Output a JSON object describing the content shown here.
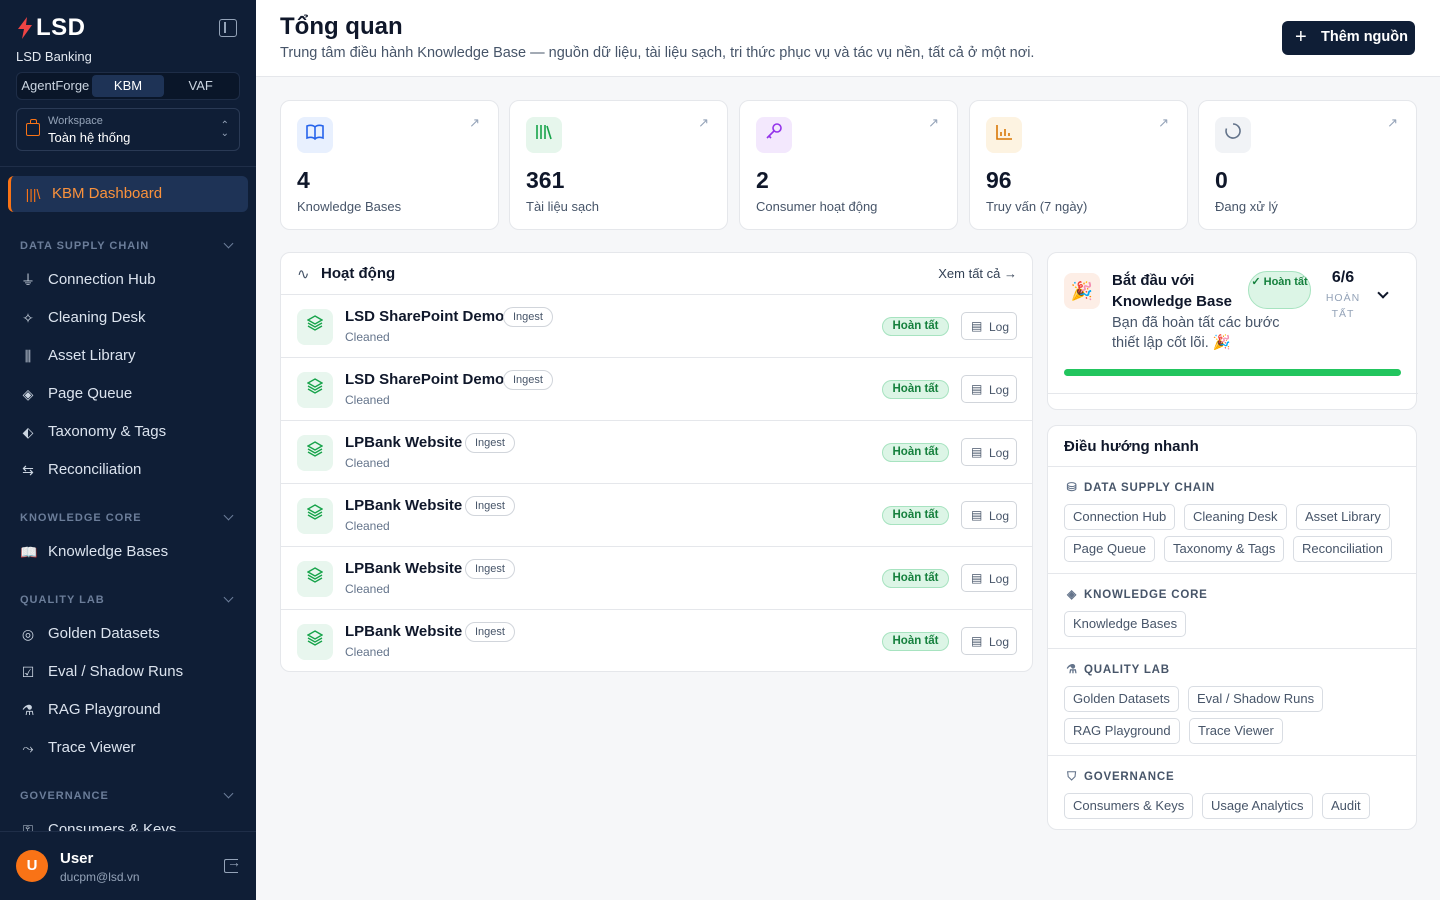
{
  "brand": {
    "logo": "LSD",
    "org": "LSD Banking"
  },
  "segments": [
    {
      "label": "AgentForge"
    },
    {
      "label": "KBM"
    },
    {
      "label": "VAF"
    }
  ],
  "workspace": {
    "label": "Workspace",
    "value": "Toàn hệ thống"
  },
  "nav": {
    "active": "KBM Dashboard",
    "sections": [
      {
        "title": "DATA SUPPLY CHAIN",
        "items": [
          "Connection Hub",
          "Cleaning Desk",
          "Asset Library",
          "Page Queue",
          "Taxonomy & Tags",
          "Reconciliation"
        ]
      },
      {
        "title": "KNOWLEDGE CORE",
        "items": [
          "Knowledge Bases"
        ]
      },
      {
        "title": "QUALITY LAB",
        "items": [
          "Golden Datasets",
          "Eval / Shadow Runs",
          "RAG Playground",
          "Trace Viewer"
        ]
      },
      {
        "title": "GOVERNANCE",
        "items": [
          "Consumers & Keys"
        ]
      }
    ]
  },
  "user": {
    "initial": "U",
    "name": "User",
    "email": "ducpm@lsd.vn"
  },
  "header": {
    "title": "Tổng quan",
    "subtitle": "Trung tâm điều hành Knowledge Base — nguồn dữ liệu, tài liệu sạch, tri thức phục vụ và tác vụ nền, tất cả ở một nơi.",
    "add_button": "Thêm nguồn"
  },
  "stats": [
    {
      "value": "4",
      "label": "Knowledge Bases",
      "icon": "book-icon",
      "color": "#2563eb",
      "bg": "#e8f0fe"
    },
    {
      "value": "361",
      "label": "Tài liệu sạch",
      "icon": "library-icon",
      "color": "#16a34a",
      "bg": "#e6f6ec"
    },
    {
      "value": "2",
      "label": "Consumer hoạt động",
      "icon": "key-icon",
      "color": "#9333ea",
      "bg": "#f3e8fd"
    },
    {
      "value": "96",
      "label": "Truy vấn (7 ngày)",
      "icon": "bar-chart-icon",
      "color": "#d97706",
      "bg": "#fdf3e1"
    },
    {
      "value": "0",
      "label": "Đang xử lý",
      "icon": "loader-icon",
      "color": "#64748b",
      "bg": "#f1f3f6"
    }
  ],
  "activity": {
    "title": "Hoạt động",
    "view_all": "Xem tất cả",
    "rows": [
      {
        "name": "LSD SharePoint Demo",
        "tag": "Ingest",
        "sub": "Cleaned",
        "status": "Hoàn tất",
        "action": "Log"
      },
      {
        "name": "LSD SharePoint Demo",
        "tag": "Ingest",
        "sub": "Cleaned",
        "status": "Hoàn tất",
        "action": "Log"
      },
      {
        "name": "LPBank Website",
        "tag": "Ingest",
        "sub": "Cleaned",
        "status": "Hoàn tất",
        "action": "Log"
      },
      {
        "name": "LPBank Website",
        "tag": "Ingest",
        "sub": "Cleaned",
        "status": "Hoàn tất",
        "action": "Log"
      },
      {
        "name": "LPBank Website",
        "tag": "Ingest",
        "sub": "Cleaned",
        "status": "Hoàn tất",
        "action": "Log"
      },
      {
        "name": "LPBank Website",
        "tag": "Ingest",
        "sub": "Cleaned",
        "status": "Hoàn tất",
        "action": "Log"
      }
    ]
  },
  "onboarding": {
    "title": "Bắt đầu với Knowledge Base",
    "badge": "Hoàn tất",
    "count": "6/6",
    "count_label": "HOÀN TẤT",
    "desc": "Bạn đã hoàn tất các bước thiết lập cốt lõi. 🎉",
    "progress": 1.0
  },
  "quick_nav": {
    "title": "Điều hướng nhanh",
    "sections": [
      {
        "title": "DATA SUPPLY CHAIN",
        "icon": "database-icon",
        "chips": [
          "Connection Hub",
          "Cleaning Desk",
          "Asset Library",
          "Page Queue",
          "Taxonomy & Tags",
          "Reconciliation"
        ]
      },
      {
        "title": "KNOWLEDGE CORE",
        "icon": "layers-icon",
        "chips": [
          "Knowledge Bases"
        ]
      },
      {
        "title": "QUALITY LAB",
        "icon": "flask-icon",
        "chips": [
          "Golden Datasets",
          "Eval / Shadow Runs",
          "RAG Playground",
          "Trace Viewer"
        ]
      },
      {
        "title": "GOVERNANCE",
        "icon": "shield-check-icon",
        "chips": [
          "Consumers & Keys",
          "Usage Analytics",
          "Audit"
        ]
      }
    ]
  }
}
